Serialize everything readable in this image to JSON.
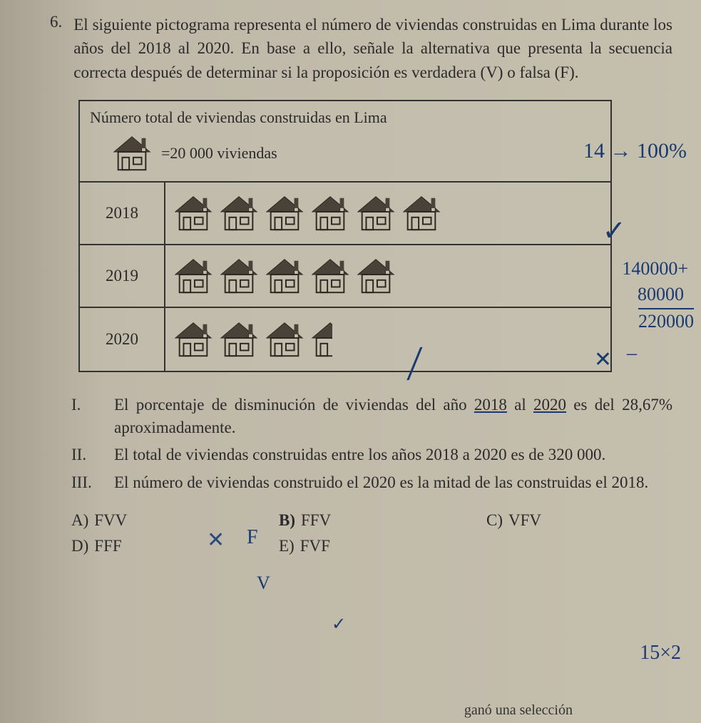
{
  "question": {
    "number": "6.",
    "text": "El siguiente pictograma representa el número de viviendas construidas en Lima durante los años del 2018 al 2020. En base a ello, señale la alternativa que presenta la secuencia correcta después de determinar si la proposición es verdadera (V) o falsa (F)."
  },
  "pictogram": {
    "title": "Número total de viviendas construidas en Lima",
    "legend_text": "=20 000 viviendas",
    "house_value": 20000,
    "icon_colors": {
      "roof": "#4a4238",
      "wall": "#c5bfae",
      "outline": "#2a2620"
    },
    "rows": [
      {
        "year": "2018",
        "full_houses": 6,
        "half_houses": 0
      },
      {
        "year": "2019",
        "full_houses": 5,
        "half_houses": 0
      },
      {
        "year": "2020",
        "full_houses": 3,
        "half_houses": 1
      }
    ]
  },
  "statements": [
    {
      "roman": "I.",
      "text": "El porcentaje de disminución de viviendas del año 2018 al 2020 es del 28,67% aproximadamente."
    },
    {
      "roman": "II.",
      "text": "El total de viviendas construidas entre los años 2018 a 2020 es de 320 000."
    },
    {
      "roman": "III.",
      "text": "El número de viviendas construido el 2020 es la mitad de las construidas el 2018."
    }
  ],
  "options": {
    "a": {
      "letter": "A)",
      "value": "FVV"
    },
    "b": {
      "letter": "B)",
      "value": "FFV"
    },
    "c": {
      "letter": "C)",
      "value": "VFV"
    },
    "d": {
      "letter": "D)",
      "value": "FFF"
    },
    "e": {
      "letter": "E)",
      "value": "FVF"
    }
  },
  "handwritten": {
    "top_right": "14 → 100%",
    "calc1": "140000+",
    "calc2": "80000",
    "calc3": "220000",
    "checkmark_2018": "✓",
    "x_2020": "✕",
    "dash_2020": "‒",
    "slash_2020": "╱",
    "x_320": "✕",
    "f_letter": "F",
    "v_letter": "V",
    "b_check": "✓",
    "bottom_right": "15×2"
  },
  "footer": "ganó una selección"
}
